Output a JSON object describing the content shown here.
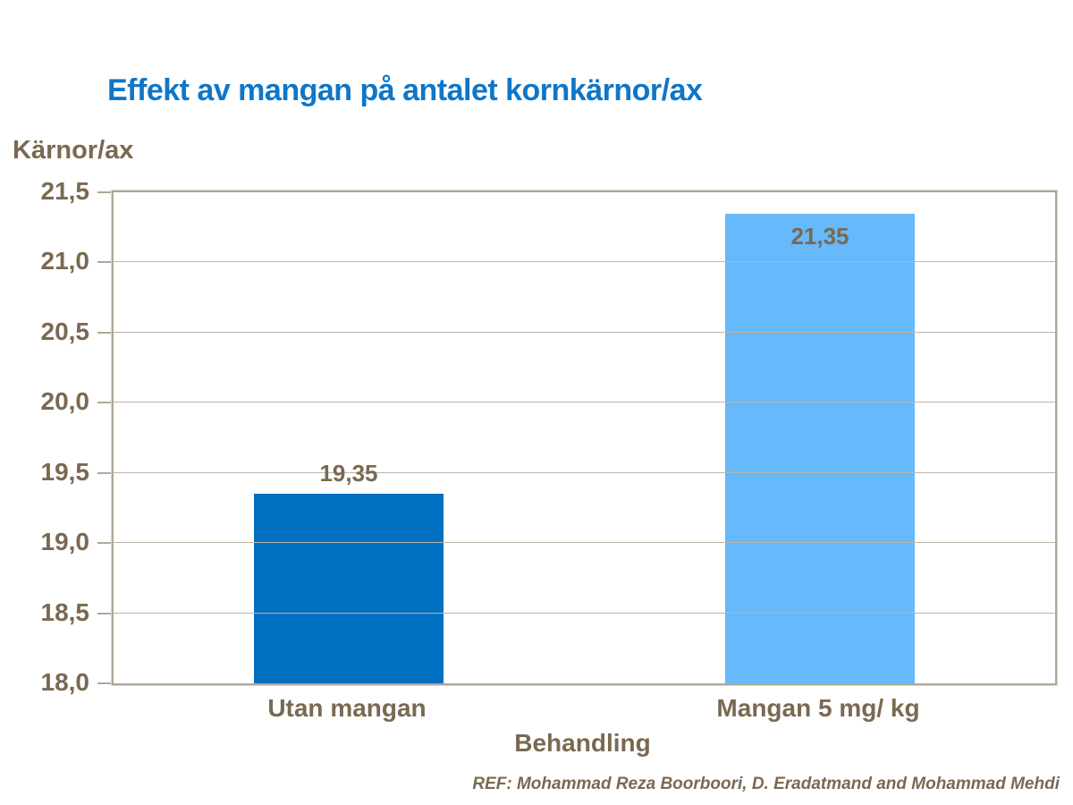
{
  "title": "Effekt av mangan på antalet kornkärnor/ax",
  "footer_ref": "REF: Mohammad Reza Boorboori, D. Eradatmand and Mohammad Mehdi",
  "colors": {
    "title_blue": "#0F76C8",
    "text_brown": "#7A6952",
    "axis_line": "#B2A698",
    "gridline": "#BFB4A6",
    "background": "#FFFFFF",
    "bar_utan_mangan": "#0070C0",
    "bar_mangan_5mg": "#66B9FA"
  },
  "chart_data": {
    "type": "bar",
    "title": "Effekt av mangan på antalet kornkärnor/ax",
    "categories": [
      "Utan mangan",
      "Mangan 5 mg/ kg"
    ],
    "values": [
      19.35,
      21.35
    ],
    "value_labels": [
      "19,35",
      "21,35"
    ],
    "bar_colors": [
      "#0070C0",
      "#66B9FA"
    ],
    "xlabel": "Behandling",
    "ylabel": "Kärnor/ax",
    "ylim": [
      18.0,
      21.5
    ],
    "ytick_step": 0.5,
    "ytick_labels_top_to_bottom": [
      "21,5",
      "21,0",
      "20,5",
      "20,0",
      "19,5",
      "19,0",
      "18,5",
      "18,0"
    ],
    "grid": true,
    "legend_position": "none"
  }
}
